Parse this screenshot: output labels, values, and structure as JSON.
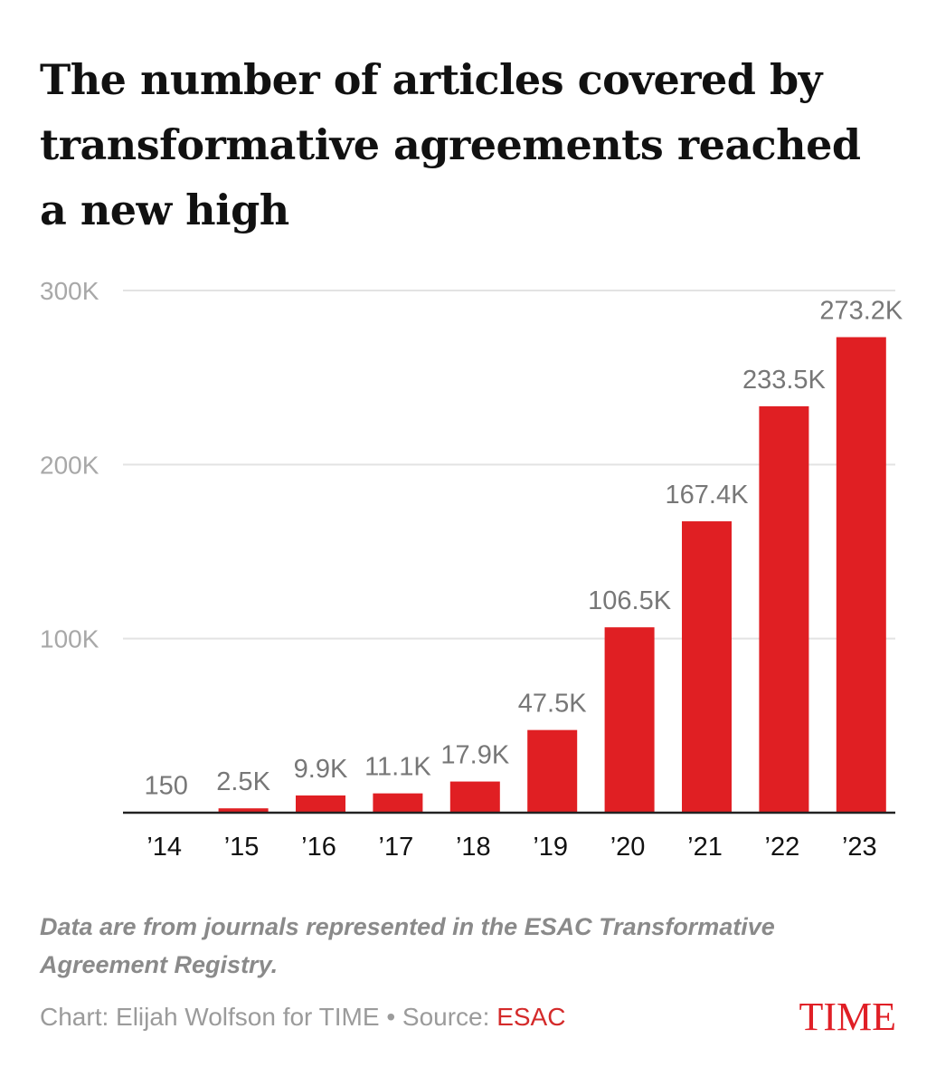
{
  "chart_data": {
    "type": "bar",
    "title": "The number of articles covered by transformative agreements reached a new high",
    "categories": [
      "’14",
      "’15",
      "’16",
      "’17",
      "’18",
      "’19",
      "’20",
      "’21",
      "’22",
      "’23"
    ],
    "values": [
      150,
      2500,
      9900,
      11100,
      17900,
      47500,
      106500,
      167400,
      233500,
      273200
    ],
    "data_labels": [
      "150",
      "2.5K",
      "9.9K",
      "11.1K",
      "17.9K",
      "47.5K",
      "106.5K",
      "167.4K",
      "233.5K",
      "273.2K"
    ],
    "y_ticks": [
      100000,
      200000,
      300000
    ],
    "y_tick_labels": [
      "100K",
      "200K",
      "300K"
    ],
    "ylim": [
      0,
      300000
    ],
    "xlabel": "",
    "ylabel": "",
    "grid": true,
    "bar_color": "#e01f23"
  },
  "note": "Data are from journals represented in the ESAC Transformative Agreement Registry.",
  "credit": {
    "prefix": "Chart: Elijah Wolfson for TIME • Source: ",
    "source": "ESAC"
  },
  "logo": "TIME",
  "colors": {
    "bar": "#e01f23",
    "grid": "#e3e3e3",
    "axis": "#222222",
    "label": "#777777",
    "logo": "#e01f26"
  }
}
